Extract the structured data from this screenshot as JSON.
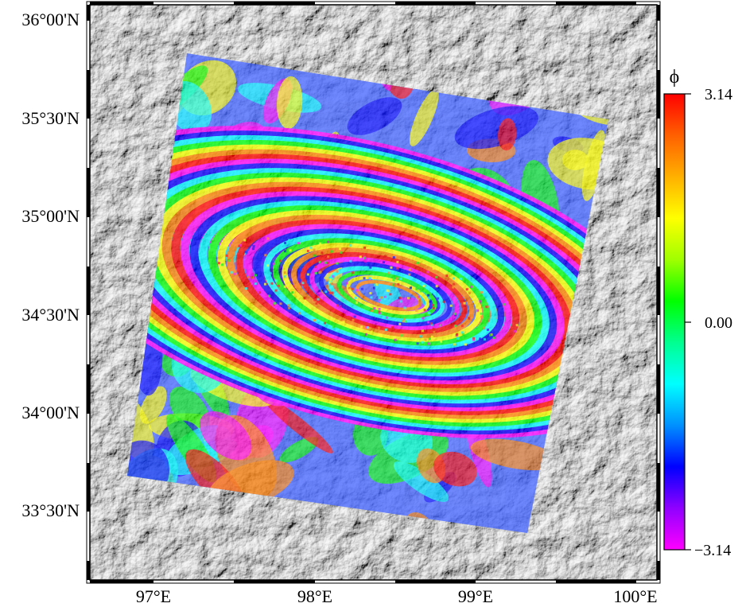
{
  "map": {
    "lon_ticks": [
      "97°E",
      "98°E",
      "99°E",
      "100°E"
    ],
    "lat_ticks": [
      "36°00'N",
      "35°30'N",
      "35°00'N",
      "34°30'N",
      "34°00'N",
      "33°30'N"
    ],
    "lon_range": [
      96.6,
      100.15
    ],
    "lat_range": [
      33.22,
      36.05
    ],
    "layers": [
      "shaded-relief",
      "wrapped-interferogram"
    ],
    "phase_colors": [
      "#ff00ff",
      "#0000ff",
      "#00ffff",
      "#00ff00",
      "#ffff00",
      "#ff8000",
      "#ff0000"
    ]
  },
  "colorbar": {
    "symbol": "ϕ",
    "max_label": "3.14",
    "mid_label": "0.00",
    "min_label": "−3.14",
    "range": [
      -3.14,
      3.14
    ],
    "colors": [
      "#ff00ff",
      "#9000ff",
      "#0000ff",
      "#0090ff",
      "#00ffff",
      "#00ff90",
      "#00ff00",
      "#a0ff00",
      "#ffff00",
      "#ffb000",
      "#ff6000",
      "#ff0000"
    ]
  }
}
